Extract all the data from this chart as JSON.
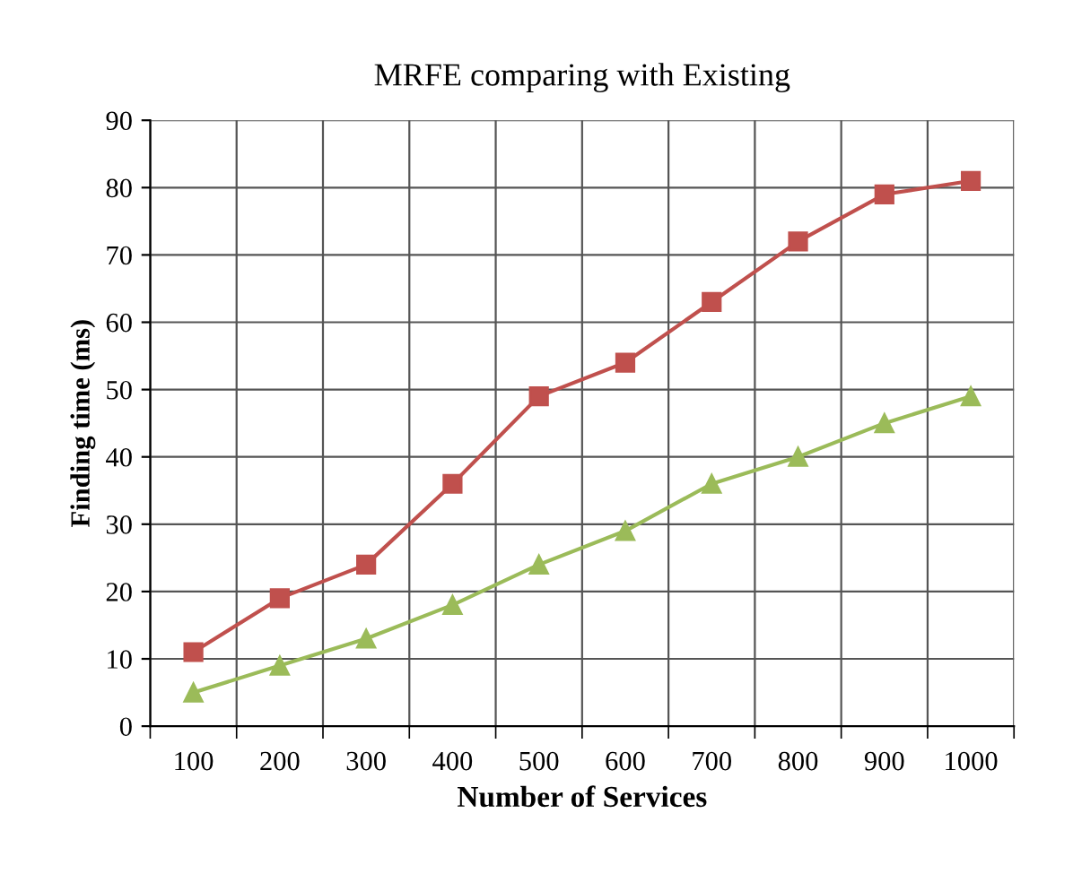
{
  "chart_data": {
    "type": "line",
    "title": "MRFE comparing with Existing",
    "xlabel": "Number of Services",
    "ylabel": "Finding time (ms)",
    "categories": [
      "100",
      "200",
      "300",
      "400",
      "500",
      "600",
      "700",
      "800",
      "900",
      "1000"
    ],
    "series": [
      {
        "color": "#c0504d",
        "marker": "square",
        "values": [
          11,
          19,
          24,
          36,
          49,
          54,
          63,
          72,
          79,
          81
        ]
      },
      {
        "color": "#9bbb59",
        "marker": "triangle",
        "values": [
          5,
          9,
          13,
          18,
          24,
          29,
          36,
          40,
          45,
          49
        ]
      }
    ],
    "ylim": [
      0,
      90
    ],
    "yticks": [
      0,
      10,
      20,
      30,
      40,
      50,
      60,
      70,
      80,
      90
    ],
    "grid": true,
    "legend": false
  }
}
